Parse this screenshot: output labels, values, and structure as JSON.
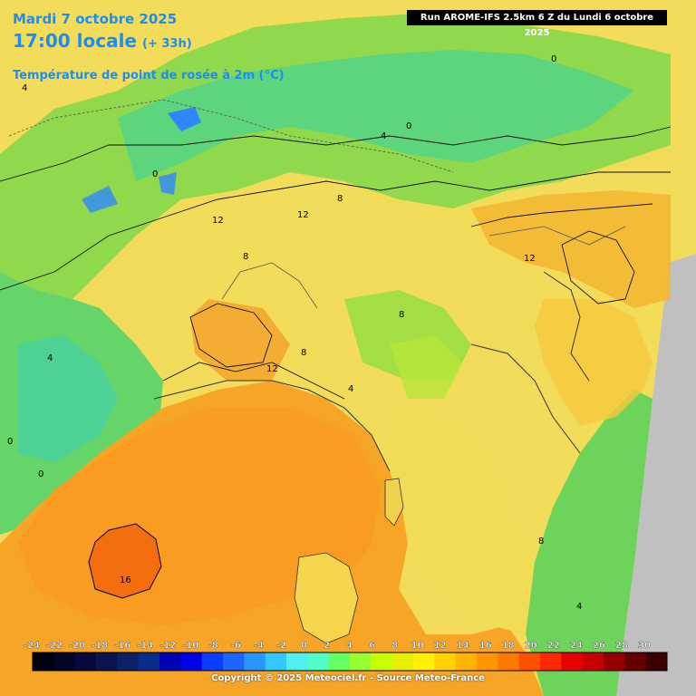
{
  "header": {
    "date": "Mardi 7 octobre 2025",
    "time": "17:00 locale",
    "lead_time": "(+ 33h)",
    "parameter": "Température de point de rosée à 2m (°C)",
    "run_info": "Run AROME-IFS 2.5km 6 Z du Lundi 6 octobre 2025"
  },
  "map_labels": [
    {
      "text": "0"
    },
    {
      "text": "0"
    },
    {
      "text": "0"
    },
    {
      "text": "0"
    },
    {
      "text": "0"
    },
    {
      "text": "4"
    },
    {
      "text": "4"
    },
    {
      "text": "4"
    },
    {
      "text": "4"
    },
    {
      "text": "4"
    },
    {
      "text": "8"
    },
    {
      "text": "8"
    },
    {
      "text": "8"
    },
    {
      "text": "8"
    },
    {
      "text": "8"
    },
    {
      "text": "12"
    },
    {
      "text": "12"
    },
    {
      "text": "12"
    },
    {
      "text": "12"
    },
    {
      "text": "16"
    }
  ],
  "legend": {
    "ticks": [
      "-24",
      "-22",
      "-20",
      "-18",
      "-16",
      "-14",
      "-12",
      "-10",
      "-8",
      "-6",
      "-4",
      "-2",
      "0",
      "2",
      "4",
      "6",
      "8",
      "10",
      "12",
      "14",
      "16",
      "18",
      "20",
      "22",
      "24",
      "26",
      "28",
      "30"
    ],
    "colors": [
      "#000010",
      "#040424",
      "#08083c",
      "#0a1450",
      "#0c206a",
      "#0a2c8c",
      "#0000b4",
      "#0000e6",
      "#0c3cff",
      "#1e64ff",
      "#2896ff",
      "#32c8ff",
      "#50f0f0",
      "#50ffc8",
      "#64ff64",
      "#96ff32",
      "#c8ff00",
      "#e6f000",
      "#fff000",
      "#ffd200",
      "#ffb400",
      "#ff9600",
      "#ff7800",
      "#ff5000",
      "#ff2800",
      "#e60000",
      "#c80000",
      "#960000",
      "#640000",
      "#3c0000"
    ]
  },
  "copyright": "Copyright © 2025 Meteociel.fr - Source Meteo-France"
}
